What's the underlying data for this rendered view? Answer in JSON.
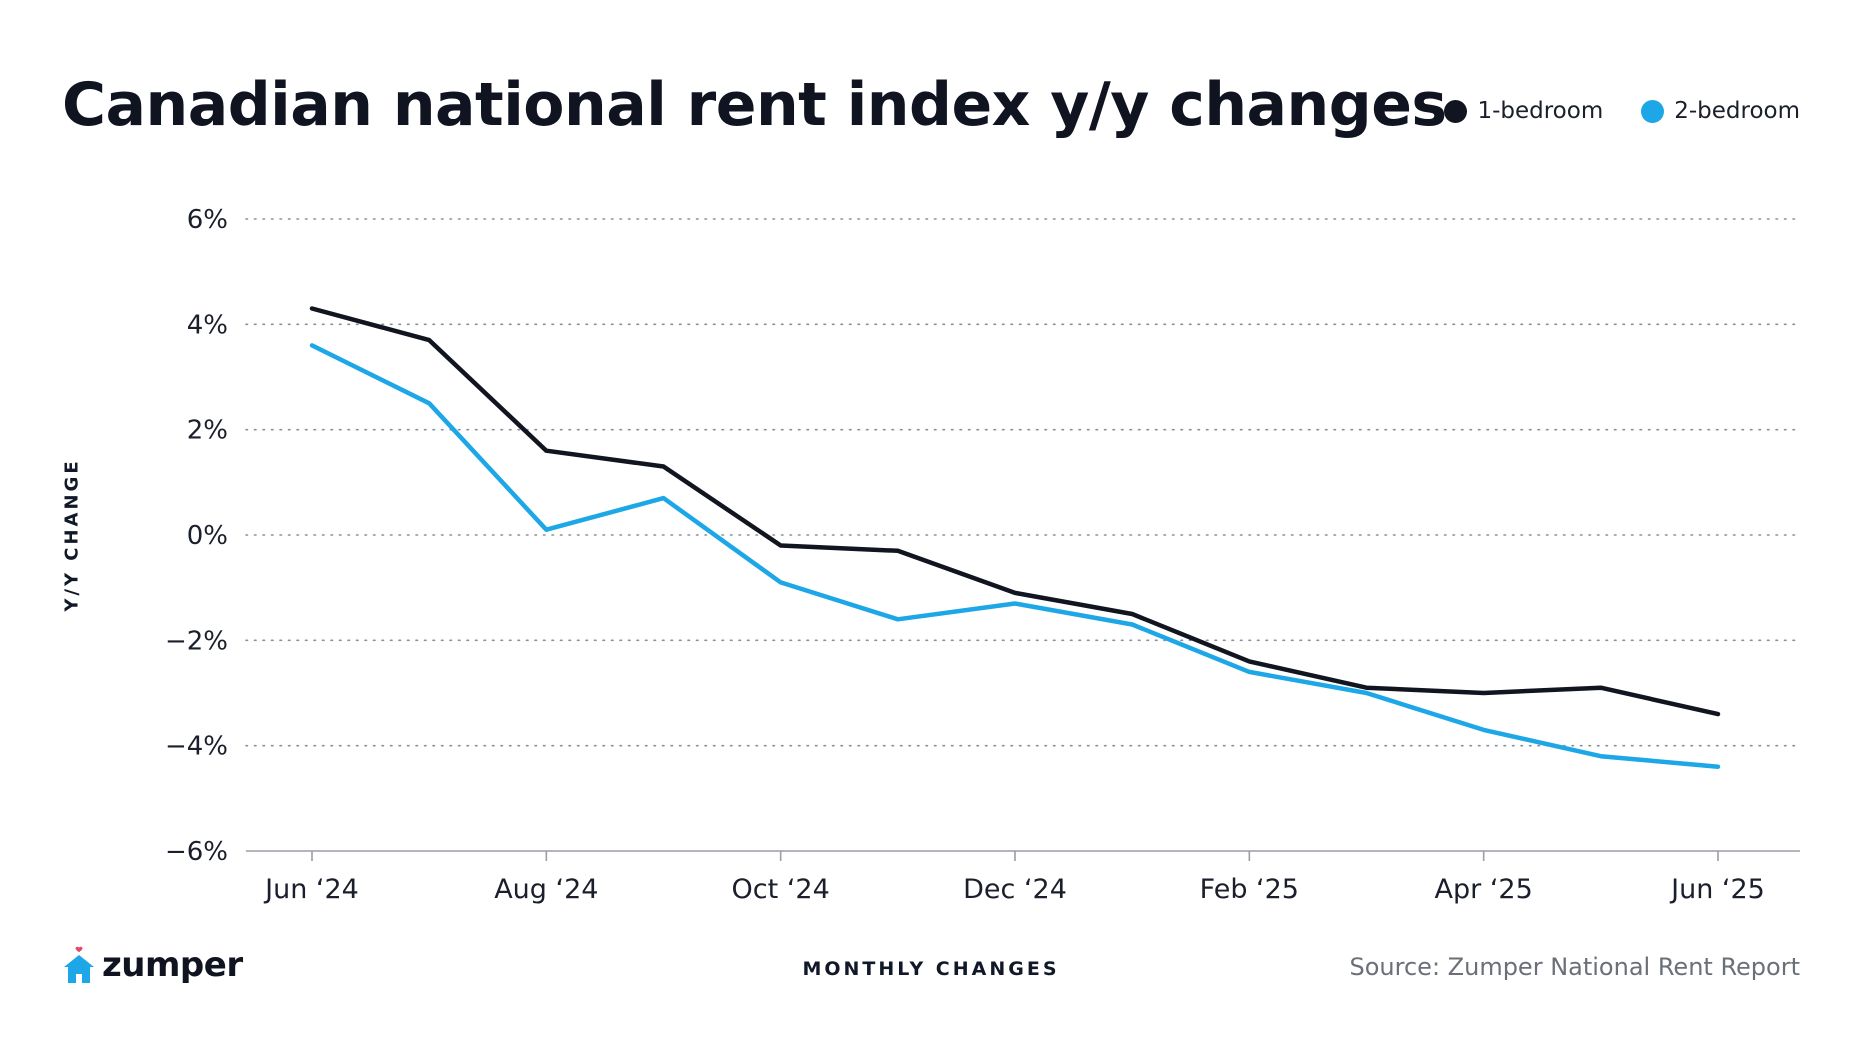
{
  "header": {
    "title": "Canadian national rent index y/y changes"
  },
  "legend": [
    {
      "label": "1-bedroom",
      "color": "#111520"
    },
    {
      "label": "2-bedroom",
      "color": "#1ea7e6"
    }
  ],
  "footer": {
    "xlabel": "MONTHLY CHANGES",
    "source": "Source: Zumper National Rent Report",
    "logo_text": "zumper",
    "logo_icon": "house-heart-icon",
    "logo_color": "#1ea7e6"
  },
  "chart_data": {
    "type": "line",
    "title": "Canadian national rent index y/y changes",
    "xlabel": "MONTHLY CHANGES",
    "ylabel": "Y/Y CHANGE",
    "x": [
      "Jun '24",
      "Jul '24",
      "Aug '24",
      "Sep '24",
      "Oct '24",
      "Nov '24",
      "Dec '24",
      "Jan '25",
      "Feb '25",
      "Mar '25",
      "Apr '25",
      "May '25",
      "Jun '25"
    ],
    "x_tick_labels": [
      "Jun ‘24",
      "Aug ‘24",
      "Oct ‘24",
      "Dec ‘24",
      "Feb ‘25",
      "Apr ‘25",
      "Jun ‘25"
    ],
    "x_tick_indices": [
      0,
      2,
      4,
      6,
      8,
      10,
      12
    ],
    "ylim": [
      -6,
      6
    ],
    "y_ticks": [
      6,
      4,
      2,
      0,
      -2,
      -4,
      -6
    ],
    "y_tick_labels": [
      "6%",
      "4%",
      "2%",
      "0%",
      "−2%",
      "−4%",
      "−6%"
    ],
    "grid": "horizontal-dotted",
    "legend_position": "top-right",
    "series": [
      {
        "name": "1-bedroom",
        "color": "#111520",
        "values": [
          4.3,
          3.7,
          1.6,
          1.3,
          -0.2,
          -0.3,
          -1.1,
          -1.5,
          -2.4,
          -2.9,
          -3.0,
          -2.9,
          -3.4
        ]
      },
      {
        "name": "2-bedroom",
        "color": "#1ea7e6",
        "values": [
          3.6,
          2.5,
          0.1,
          0.7,
          -0.9,
          -1.6,
          -1.3,
          -1.7,
          -2.6,
          -3.0,
          -3.7,
          -4.2,
          -4.4
        ]
      }
    ]
  }
}
